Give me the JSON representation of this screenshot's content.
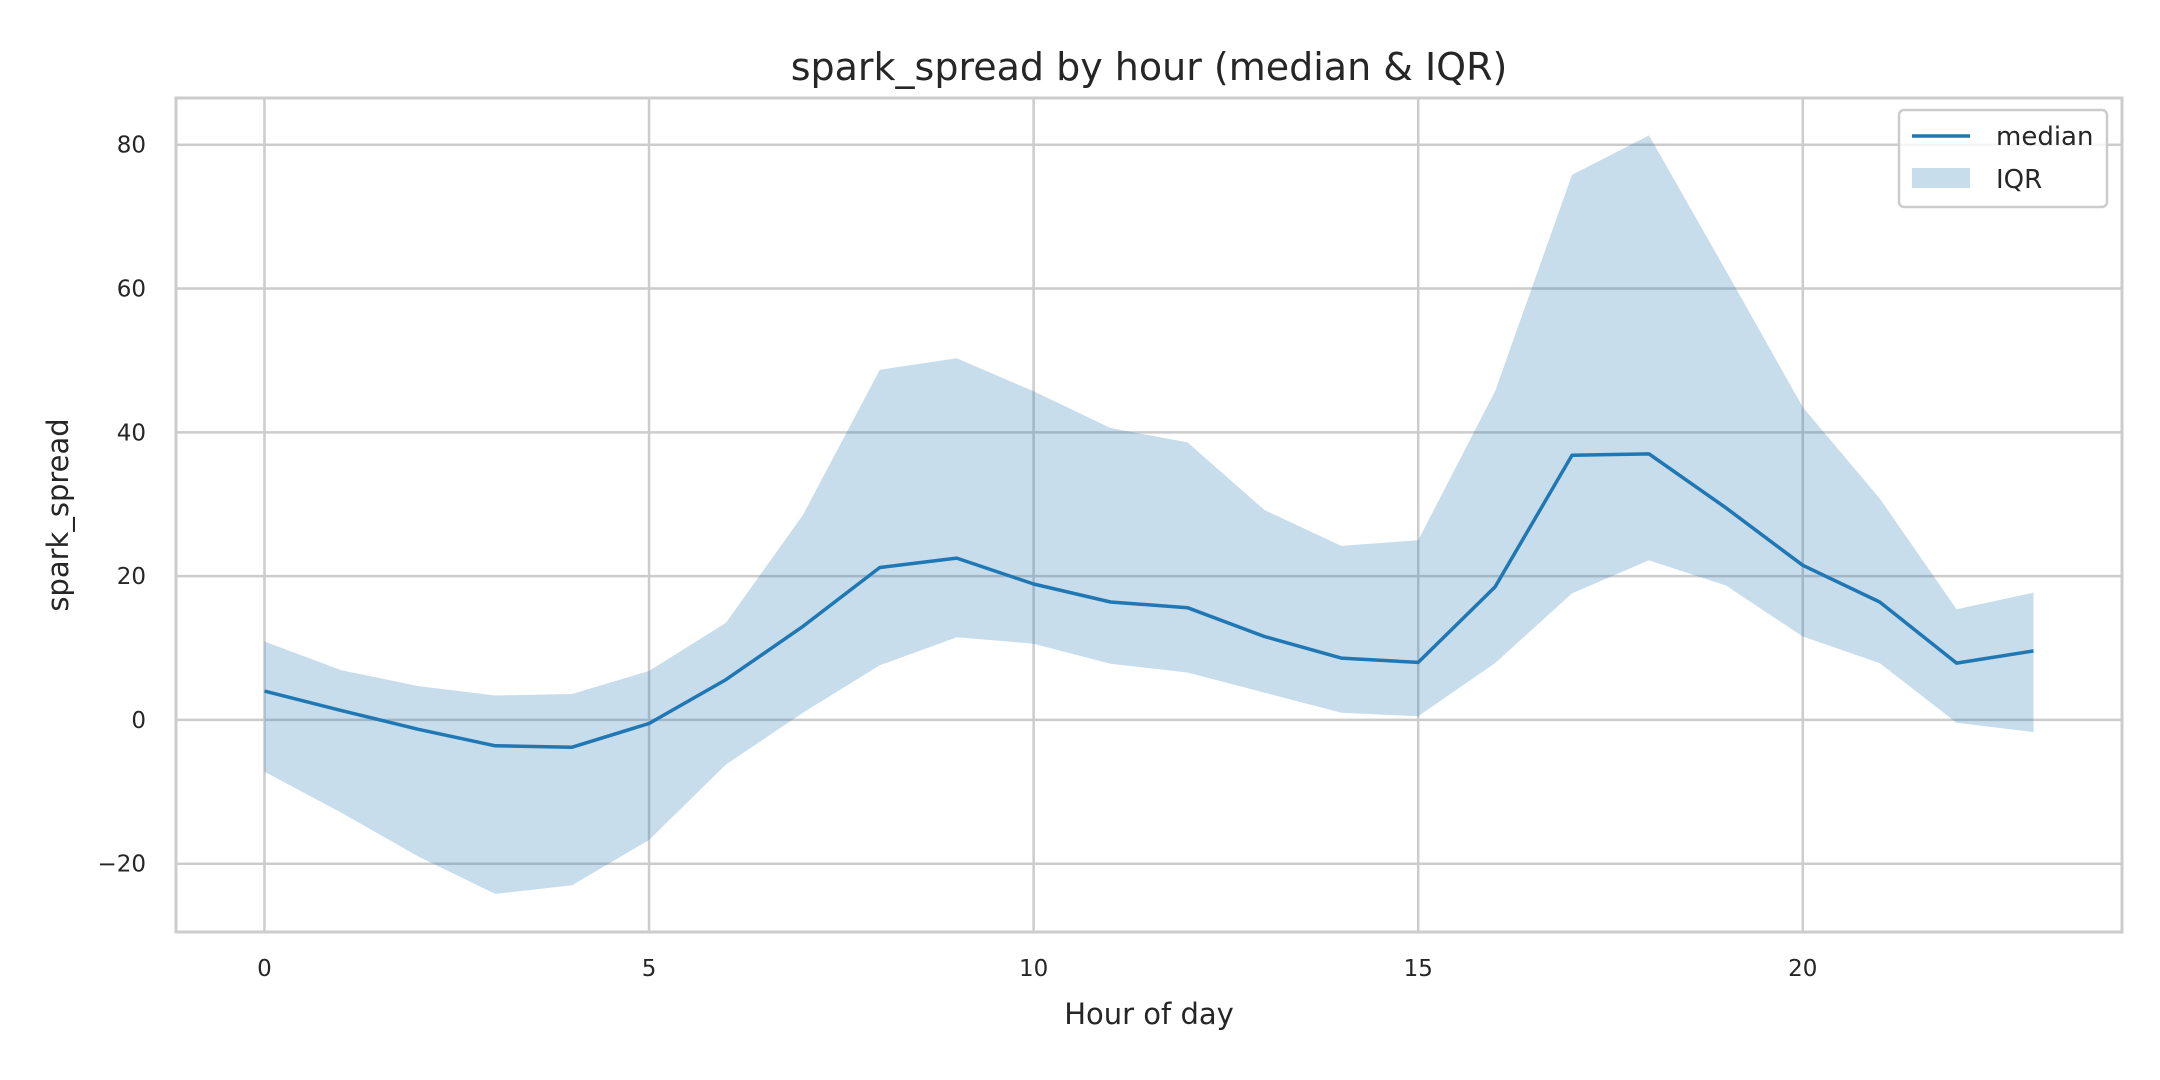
{
  "chart_data": {
    "type": "line",
    "title": "spark_spread by hour (median & IQR)",
    "xlabel": "Hour of day",
    "ylabel": "spark_spread",
    "xlim": [
      -1.15,
      24.15
    ],
    "ylim": [
      -29.5,
      86.5
    ],
    "xticks": [
      0,
      5,
      10,
      15,
      20
    ],
    "yticks": [
      -20,
      0,
      20,
      40,
      60,
      80
    ],
    "grid": true,
    "legend_position": "top-right",
    "x": [
      0,
      1,
      2,
      3,
      4,
      5,
      6,
      7,
      8,
      9,
      10,
      11,
      12,
      13,
      14,
      15,
      16,
      17,
      18,
      19,
      20,
      21,
      22,
      23
    ],
    "series": [
      {
        "name": "median",
        "kind": "line",
        "color": "#1f77b4",
        "values": [
          4.0,
          1.3,
          -1.3,
          -3.6,
          -3.8,
          -0.5,
          5.6,
          13.0,
          21.2,
          22.5,
          18.9,
          16.4,
          15.6,
          11.6,
          8.6,
          8.0,
          18.5,
          36.8,
          37.0,
          29.5,
          21.5,
          16.4,
          7.9,
          9.6
        ]
      },
      {
        "name": "IQR",
        "kind": "band",
        "color": "#1f77b4",
        "opacity": 0.25,
        "lower": [
          -7.2,
          -12.9,
          -19.0,
          -24.2,
          -23.0,
          -16.7,
          -6.2,
          1.0,
          7.6,
          11.5,
          10.6,
          7.8,
          6.6,
          3.8,
          1.0,
          0.5,
          7.9,
          17.6,
          22.2,
          18.7,
          11.6,
          7.9,
          -0.4,
          -1.7
        ],
        "upper": [
          10.9,
          6.9,
          4.7,
          3.4,
          3.6,
          6.8,
          13.5,
          28.5,
          48.7,
          50.3,
          45.7,
          40.6,
          38.6,
          29.2,
          24.2,
          25.0,
          45.7,
          75.8,
          81.3,
          62.5,
          43.5,
          30.8,
          15.4,
          17.7
        ]
      }
    ]
  }
}
